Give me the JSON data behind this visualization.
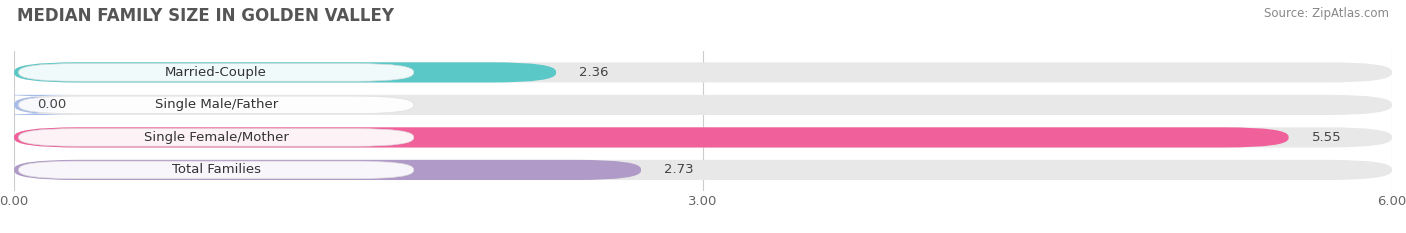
{
  "title": "MEDIAN FAMILY SIZE IN GOLDEN VALLEY",
  "source": "Source: ZipAtlas.com",
  "categories": [
    "Married-Couple",
    "Single Male/Father",
    "Single Female/Mother",
    "Total Families"
  ],
  "values": [
    2.36,
    0.0,
    5.55,
    2.73
  ],
  "bar_colors": [
    "#5bc8c8",
    "#a8bce8",
    "#f0609a",
    "#b09ac8"
  ],
  "bar_bg_color": "#e8e8e8",
  "xlim": [
    0,
    6.0
  ],
  "xticks": [
    0.0,
    3.0,
    6.0
  ],
  "xtick_labels": [
    "0.00",
    "3.00",
    "6.00"
  ],
  "label_fontsize": 9.5,
  "title_fontsize": 12,
  "source_fontsize": 8.5,
  "value_fontsize": 9.5,
  "background_color": "#ffffff",
  "bar_height": 0.62,
  "bar_label_color": "#444444",
  "category_label_color": "#333333",
  "grid_color": "#cccccc",
  "title_color": "#555555"
}
